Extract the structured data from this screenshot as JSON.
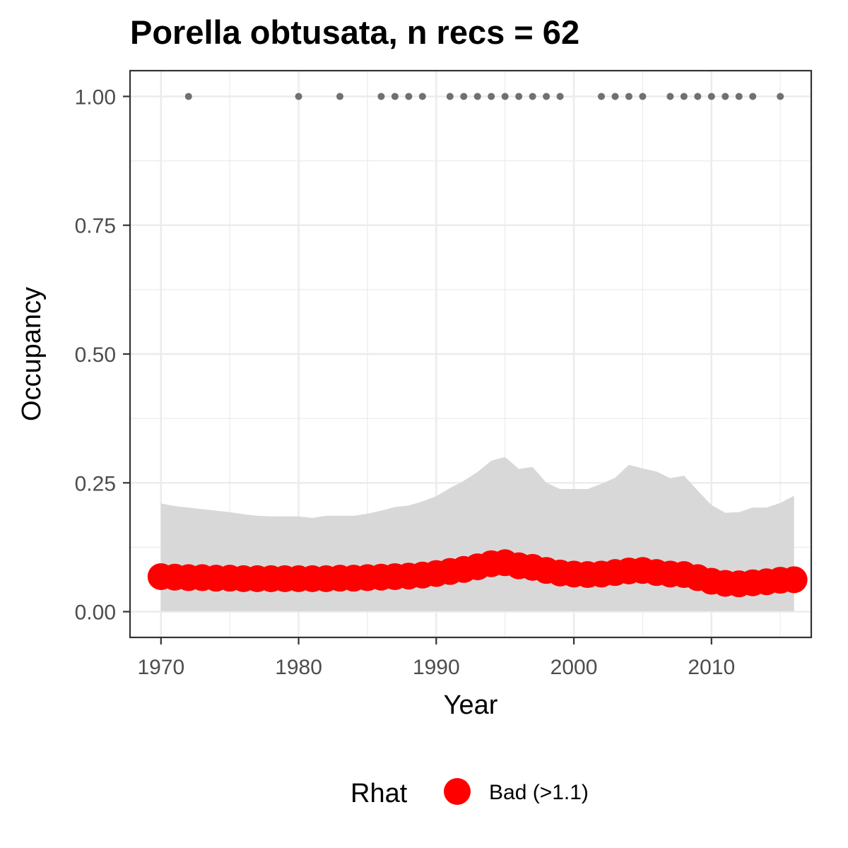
{
  "chart_data": {
    "type": "scatter",
    "title": "Porella obtusata, n recs = 62",
    "xlabel": "Year",
    "ylabel": "Occupancy",
    "xlim": [
      1967.75,
      2017.25
    ],
    "ylim": [
      -0.05,
      1.05
    ],
    "x_ticks": [
      1970,
      1980,
      1990,
      2000,
      2010
    ],
    "x_tick_labels": [
      "1970",
      "1980",
      "1990",
      "2000",
      "2010"
    ],
    "y_ticks": [
      0,
      0.25,
      0.5,
      0.75,
      1.0
    ],
    "y_tick_labels": [
      "0.00",
      "0.25",
      "0.50",
      "0.75",
      "1.00"
    ],
    "grid": true,
    "legend": {
      "title": "Rhat",
      "position": "bottom",
      "entries": [
        {
          "label": "Bad (>1.1)",
          "color": "#ff0000"
        }
      ]
    },
    "colors": {
      "estimate": "#ff0000",
      "ribbon": "#d6d6d6",
      "records": "#707070",
      "grid": "#ebebeb",
      "border": "#333333"
    },
    "years": [
      1970,
      1971,
      1972,
      1973,
      1974,
      1975,
      1976,
      1977,
      1978,
      1979,
      1980,
      1981,
      1982,
      1983,
      1984,
      1985,
      1986,
      1987,
      1988,
      1989,
      1990,
      1991,
      1992,
      1993,
      1994,
      1995,
      1996,
      1997,
      1998,
      1999,
      2000,
      2001,
      2002,
      2003,
      2004,
      2005,
      2006,
      2007,
      2008,
      2009,
      2010,
      2011,
      2012,
      2013,
      2014,
      2015,
      2016
    ],
    "series": [
      {
        "name": "Bad (>1.1)",
        "values": [
          0.068,
          0.067,
          0.066,
          0.066,
          0.065,
          0.065,
          0.064,
          0.064,
          0.064,
          0.064,
          0.064,
          0.064,
          0.064,
          0.065,
          0.065,
          0.066,
          0.067,
          0.068,
          0.069,
          0.071,
          0.074,
          0.078,
          0.082,
          0.087,
          0.093,
          0.095,
          0.089,
          0.086,
          0.08,
          0.075,
          0.073,
          0.072,
          0.073,
          0.076,
          0.079,
          0.08,
          0.076,
          0.073,
          0.072,
          0.066,
          0.059,
          0.055,
          0.054,
          0.056,
          0.058,
          0.061,
          0.062
        ]
      }
    ],
    "ribbon": {
      "lower": [
        0.001,
        0.001,
        0.001,
        0.001,
        0.001,
        0.001,
        0.001,
        0.001,
        0.001,
        0.001,
        0.001,
        0.001,
        0.001,
        0.001,
        0.001,
        0.001,
        0.001,
        0.001,
        0.001,
        0.001,
        0.001,
        0.001,
        0.001,
        0.001,
        0.001,
        0.001,
        0.001,
        0.001,
        0.001,
        0.001,
        0.001,
        0.001,
        0.001,
        0.001,
        0.001,
        0.001,
        0.001,
        0.001,
        0.001,
        0.001,
        0.001,
        0.001,
        0.001,
        0.001,
        0.001,
        0.001,
        0.001
      ],
      "upper": [
        0.21,
        0.205,
        0.202,
        0.199,
        0.196,
        0.193,
        0.189,
        0.186,
        0.185,
        0.185,
        0.185,
        0.182,
        0.186,
        0.186,
        0.186,
        0.19,
        0.196,
        0.203,
        0.206,
        0.214,
        0.224,
        0.24,
        0.254,
        0.271,
        0.293,
        0.3,
        0.277,
        0.281,
        0.25,
        0.238,
        0.238,
        0.238,
        0.248,
        0.26,
        0.285,
        0.278,
        0.272,
        0.259,
        0.264,
        0.235,
        0.207,
        0.192,
        0.193,
        0.202,
        0.202,
        0.211,
        0.225
      ]
    },
    "records": {
      "years": [
        1972,
        1980,
        1983,
        1986,
        1987,
        1988,
        1989,
        1991,
        1992,
        1993,
        1994,
        1995,
        1996,
        1997,
        1998,
        1999,
        2002,
        2003,
        2004,
        2005,
        2007,
        2008,
        2009,
        2010,
        2011,
        2012,
        2013,
        2015
      ],
      "value": 1.0
    }
  }
}
